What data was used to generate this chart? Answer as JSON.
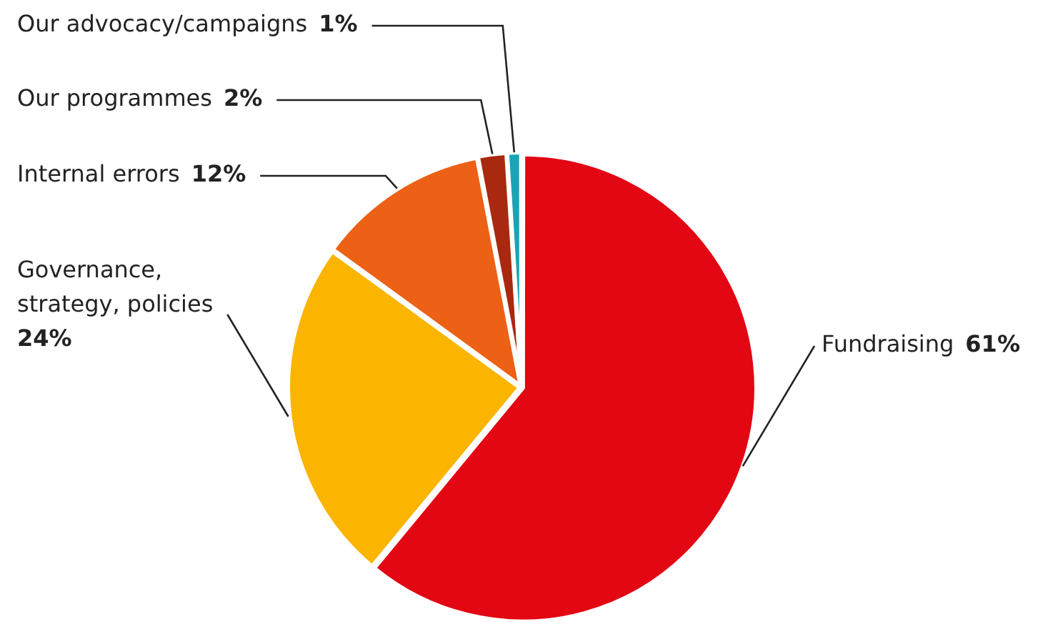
{
  "chart_data": {
    "type": "pie",
    "categories": [
      "Fundraising",
      "Governance, strategy, policies",
      "Internal errors",
      "Our programmes",
      "Our advocacy/campaigns"
    ],
    "values": [
      61,
      24,
      12,
      2,
      1
    ],
    "colors": [
      "#e30613",
      "#fbb400",
      "#ec6115",
      "#a8290f",
      "#1aa3b5"
    ],
    "value_labels": [
      "61%",
      "24%",
      "12%",
      "2%",
      "1%"
    ],
    "legend": false
  }
}
